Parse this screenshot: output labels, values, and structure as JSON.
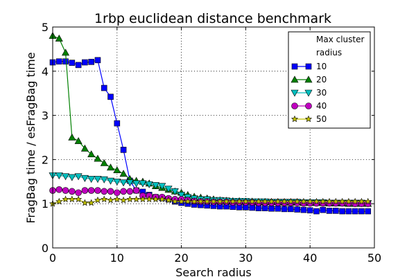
{
  "chart_data": {
    "type": "line",
    "title": "1rbp euclidean distance benchmark",
    "xlabel": "Search radius",
    "ylabel": "FragBag time / esFragBag time",
    "xlim": [
      0,
      50
    ],
    "ylim": [
      0,
      5
    ],
    "xticks": [
      0,
      10,
      20,
      30,
      40,
      50
    ],
    "yticks": [
      0,
      1,
      2,
      3,
      4,
      5
    ],
    "grid": true,
    "legend": {
      "title_line1": "Max cluster",
      "title_line2": "radius",
      "position": "top-right"
    },
    "x": [
      0,
      1,
      2,
      3,
      4,
      5,
      6,
      7,
      8,
      9,
      10,
      11,
      12,
      13,
      14,
      15,
      16,
      17,
      18,
      19,
      20,
      21,
      22,
      23,
      24,
      25,
      26,
      27,
      28,
      29,
      30,
      31,
      32,
      33,
      34,
      35,
      36,
      37,
      38,
      39,
      40,
      41,
      42,
      43,
      44,
      45,
      46,
      47,
      48,
      49
    ],
    "series": [
      {
        "name": "10",
        "color": "#0000ff",
        "marker": "square",
        "values": [
          4.2,
          4.22,
          4.22,
          4.19,
          4.14,
          4.2,
          4.21,
          4.25,
          3.62,
          3.42,
          2.82,
          2.22,
          1.52,
          1.3,
          1.27,
          1.2,
          1.15,
          1.13,
          1.1,
          1.05,
          1.02,
          1.0,
          0.98,
          0.97,
          0.96,
          0.95,
          0.94,
          0.94,
          0.93,
          0.92,
          0.92,
          0.91,
          0.9,
          0.9,
          0.89,
          0.89,
          0.88,
          0.88,
          0.87,
          0.86,
          0.85,
          0.83,
          0.86,
          0.84,
          0.84,
          0.83,
          0.83,
          0.83,
          0.83,
          0.83
        ]
      },
      {
        "name": "20",
        "color": "#008000",
        "marker": "triangle-up",
        "values": [
          4.8,
          4.74,
          4.42,
          2.5,
          2.42,
          2.25,
          2.12,
          2.02,
          1.92,
          1.82,
          1.76,
          1.68,
          1.56,
          1.52,
          1.5,
          1.46,
          1.4,
          1.36,
          1.32,
          1.28,
          1.25,
          1.2,
          1.16,
          1.14,
          1.12,
          1.1,
          1.08,
          1.07,
          1.06,
          1.06,
          1.05,
          1.05,
          1.04,
          1.04,
          1.04,
          1.04,
          1.03,
          1.03,
          1.03,
          1.02,
          1.02,
          1.02,
          1.02,
          1.01,
          1.01,
          1.01,
          1.0,
          1.0,
          1.0,
          1.0
        ]
      },
      {
        "name": "30",
        "color": "#00bfbf",
        "marker": "triangle-down",
        "values": [
          1.64,
          1.64,
          1.62,
          1.6,
          1.62,
          1.58,
          1.56,
          1.56,
          1.55,
          1.52,
          1.5,
          1.48,
          1.48,
          1.46,
          1.46,
          1.44,
          1.42,
          1.4,
          1.34,
          1.28,
          1.2,
          1.15,
          1.12,
          1.1,
          1.1,
          1.08,
          1.08,
          1.07,
          1.06,
          1.06,
          1.06,
          1.05,
          1.05,
          1.05,
          1.04,
          1.04,
          1.04,
          1.04,
          1.04,
          1.03,
          1.03,
          1.03,
          1.03,
          1.02,
          1.02,
          1.02,
          1.02,
          1.02,
          1.02,
          1.01
        ]
      },
      {
        "name": "40",
        "color": "#bf00bf",
        "marker": "circle",
        "values": [
          1.3,
          1.32,
          1.3,
          1.28,
          1.25,
          1.3,
          1.3,
          1.3,
          1.28,
          1.28,
          1.25,
          1.28,
          1.28,
          1.3,
          1.18,
          1.18,
          1.15,
          1.15,
          1.12,
          1.1,
          1.1,
          1.08,
          1.06,
          1.05,
          1.05,
          1.04,
          1.04,
          1.04,
          1.03,
          1.03,
          1.03,
          1.03,
          1.02,
          1.02,
          1.02,
          1.02,
          1.02,
          1.02,
          1.02,
          1.01,
          1.01,
          1.01,
          1.01,
          1.01,
          1.01,
          1.01,
          1.01,
          1.0,
          1.0,
          1.0
        ]
      },
      {
        "name": "50",
        "color": "#bfbf00",
        "marker": "star",
        "values": [
          1.0,
          1.05,
          1.1,
          1.1,
          1.1,
          1.02,
          1.02,
          1.08,
          1.1,
          1.08,
          1.1,
          1.08,
          1.1,
          1.1,
          1.1,
          1.1,
          1.1,
          1.1,
          1.08,
          1.05,
          1.05,
          1.05,
          1.05,
          1.05,
          1.05,
          1.05,
          1.05,
          1.05,
          1.05,
          1.05,
          1.05,
          1.05,
          1.05,
          1.05,
          1.05,
          1.05,
          1.05,
          1.05,
          1.05,
          1.05,
          1.05,
          1.05,
          1.05,
          1.05,
          1.05,
          1.05,
          1.05,
          1.05,
          1.05,
          1.05
        ]
      }
    ]
  }
}
